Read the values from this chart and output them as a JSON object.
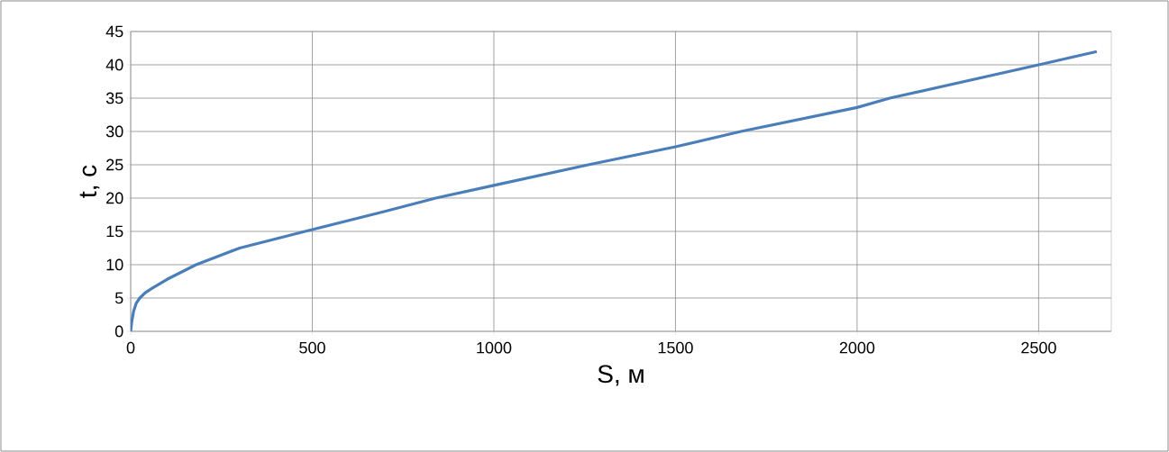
{
  "chart_data": {
    "type": "line",
    "xlabel": "S, м",
    "ylabel": "t, с",
    "x": [
      0,
      3,
      8,
      15,
      25,
      40,
      60,
      100,
      180,
      300,
      480,
      700,
      840,
      1000,
      1260,
      1500,
      1680,
      2000,
      2090,
      2500,
      2660
    ],
    "series": [
      {
        "color": "#4a7ebb",
        "values": [
          0,
          1.5,
          3,
          4.2,
          5,
          5.8,
          6.5,
          7.8,
          10,
          12.5,
          15,
          18,
          20,
          21.9,
          25,
          27.7,
          30,
          33.6,
          35,
          40,
          42
        ]
      }
    ],
    "xlim": [
      0,
      2700
    ],
    "xticks": [
      0,
      500,
      1000,
      1500,
      2000,
      2500
    ],
    "ylim": [
      0,
      45
    ],
    "yticks": [
      0,
      5,
      10,
      15,
      20,
      25,
      30,
      35,
      40,
      45
    ],
    "grid": true,
    "marker": "none",
    "line_style": "solid"
  }
}
